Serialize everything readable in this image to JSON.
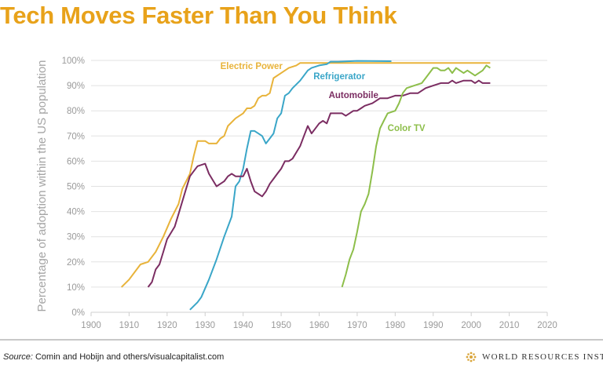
{
  "header": {
    "title": "Tech Moves Faster Than You Think"
  },
  "footer": {
    "source_label": "Source:",
    "source_text": " Comin and Hobijn and others/visualcapitalist.com",
    "org_name": "WORLD RESOURCES INST"
  },
  "chart_data": {
    "type": "line",
    "title": "Tech Moves Faster Than You Think",
    "xlabel": "",
    "ylabel": "Percentage of adoption within the US population",
    "xlim": [
      1900,
      2020
    ],
    "ylim": [
      0,
      100
    ],
    "grid": true,
    "xticks": [
      "1900",
      "1910",
      "1920",
      "1930",
      "1940",
      "1950",
      "1960",
      "1970",
      "1980",
      "1990",
      "2000",
      "2010",
      "2020"
    ],
    "yticks": [
      "0%",
      "10%",
      "20%",
      "30%",
      "40%",
      "50%",
      "60%",
      "70%",
      "80%",
      "90%",
      "100%"
    ],
    "series": [
      {
        "name": "Electric Power",
        "color": "#E8B33A",
        "x": [
          1908,
          1910,
          1912,
          1913,
          1915,
          1917,
          1919,
          1921,
          1923,
          1924,
          1926,
          1927,
          1928,
          1930,
          1931,
          1933,
          1934,
          1935,
          1936,
          1938,
          1940,
          1941,
          1942,
          1943,
          1944,
          1945,
          1946,
          1947,
          1948,
          1950,
          1952,
          1954,
          1955,
          1960,
          2005
        ],
        "y": [
          10,
          13,
          17,
          19,
          20,
          24,
          30,
          37,
          43,
          49,
          55,
          62,
          68,
          68,
          67,
          67,
          69,
          70,
          74,
          77,
          79,
          81,
          81,
          82,
          85,
          86,
          86,
          87,
          93,
          95,
          97,
          98,
          99,
          99,
          99
        ]
      },
      {
        "name": "Refrigerator",
        "color": "#3AA6C8",
        "x": [
          1926,
          1928,
          1929,
          1931,
          1933,
          1935,
          1937,
          1938,
          1939,
          1940,
          1941,
          1942,
          1943,
          1944,
          1945,
          1946,
          1947,
          1948,
          1949,
          1950,
          1951,
          1952,
          1953,
          1955,
          1957,
          1958,
          1960,
          1962,
          1963,
          1965,
          1970,
          1979
        ],
        "y": [
          1,
          4,
          6,
          13,
          21,
          30,
          38,
          50,
          52,
          57,
          65,
          72,
          72,
          71,
          70,
          67,
          69,
          71,
          77,
          79,
          86,
          87,
          89,
          92,
          96,
          97,
          98,
          98.5,
          99.5,
          99.5,
          99.8,
          99.7
        ]
      },
      {
        "name": "Automobile",
        "color": "#7B2D62",
        "x": [
          1915,
          1916,
          1917,
          1918,
          1919,
          1920,
          1922,
          1923,
          1925,
          1926,
          1927,
          1928,
          1930,
          1931,
          1933,
          1934,
          1935,
          1936,
          1937,
          1938,
          1940,
          1941,
          1942,
          1943,
          1944,
          1945,
          1946,
          1947,
          1948,
          1949,
          1950,
          1951,
          1952,
          1953,
          1955,
          1956,
          1957,
          1958,
          1959,
          1960,
          1961,
          1962,
          1963,
          1966,
          1967,
          1968,
          1969,
          1970,
          1971,
          1972,
          1974,
          1975,
          1976,
          1978,
          1980,
          1982,
          1984,
          1986,
          1988,
          1990,
          1992,
          1994,
          1995,
          1996,
          1998,
          2000,
          2001,
          2002,
          2003,
          2005
        ],
        "y": [
          10,
          12,
          17,
          19,
          24,
          29,
          34,
          39,
          49,
          54,
          56,
          58,
          59,
          55,
          50,
          51,
          52,
          54,
          55,
          54,
          54,
          57,
          52,
          48,
          47,
          46,
          48,
          51,
          53,
          55,
          57,
          60,
          60,
          61,
          66,
          70,
          74,
          71,
          73,
          75,
          76,
          75,
          79,
          79,
          78,
          79,
          80,
          80,
          81,
          82,
          83,
          84,
          85,
          85,
          86,
          86,
          87,
          87,
          89,
          90,
          91,
          91,
          92,
          91,
          92,
          92,
          91,
          92,
          91,
          91
        ]
      },
      {
        "name": "Color TV",
        "color": "#8DBE4A",
        "x": [
          1966,
          1967,
          1968,
          1969,
          1970,
          1971,
          1972,
          1973,
          1974,
          1975,
          1976,
          1977,
          1978,
          1980,
          1981,
          1982,
          1983,
          1985,
          1987,
          1988,
          1989,
          1990,
          1991,
          1992,
          1993,
          1994,
          1995,
          1996,
          1997,
          1998,
          1999,
          2000,
          2001,
          2002,
          2003,
          2004,
          2005
        ],
        "y": [
          10,
          15,
          21,
          25,
          32,
          40,
          43,
          47,
          56,
          66,
          73,
          76,
          79,
          80,
          83,
          87,
          89,
          90,
          91,
          93,
          95,
          97,
          97,
          96,
          96,
          97,
          95,
          97,
          96,
          95,
          96,
          95,
          94,
          95,
          96,
          98,
          97
        ]
      }
    ],
    "annotations": [
      "Electric Power",
      "Refrigerator",
      "Automobile",
      "Color TV"
    ]
  }
}
